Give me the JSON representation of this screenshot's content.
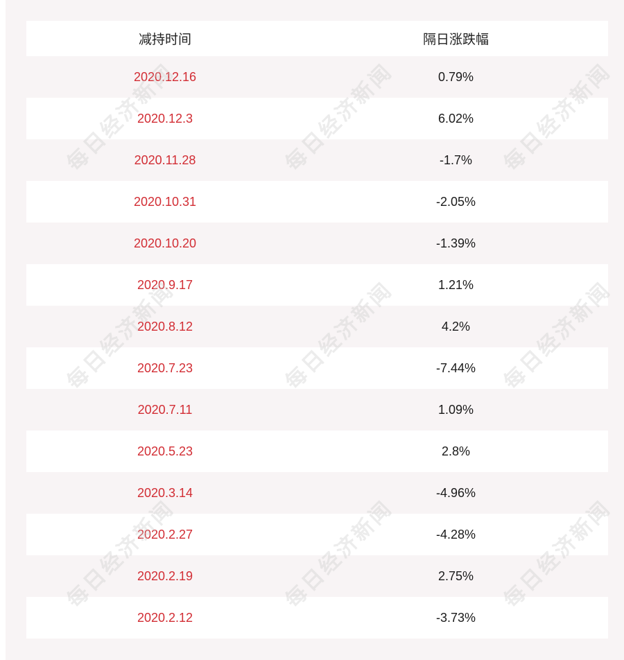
{
  "table": {
    "headers": {
      "date": "减持时间",
      "change": "隔日涨跌幅"
    },
    "rows": [
      {
        "date": "2020.12.16",
        "change": "0.79%"
      },
      {
        "date": "2020.12.3",
        "change": "6.02%"
      },
      {
        "date": "2020.11.28",
        "change": "-1.7%"
      },
      {
        "date": "2020.10.31",
        "change": "-2.05%"
      },
      {
        "date": "2020.10.20",
        "change": "-1.39%"
      },
      {
        "date": "2020.9.17",
        "change": "1.21%"
      },
      {
        "date": "2020.8.12",
        "change": "4.2%"
      },
      {
        "date": "2020.7.23",
        "change": "-7.44%"
      },
      {
        "date": "2020.7.11",
        "change": "1.09%"
      },
      {
        "date": "2020.5.23",
        "change": "2.8%"
      },
      {
        "date": "2020.3.14",
        "change": "-4.96%"
      },
      {
        "date": "2020.2.27",
        "change": "-4.28%"
      },
      {
        "date": "2020.2.19",
        "change": "2.75%"
      },
      {
        "date": "2020.2.12",
        "change": "-3.73%"
      }
    ]
  },
  "watermark": {
    "text": "每日经济新闻"
  },
  "colors": {
    "date_text": "#d22d34",
    "value_text": "#1a1a1a",
    "stripe": "#f8f4f5"
  }
}
